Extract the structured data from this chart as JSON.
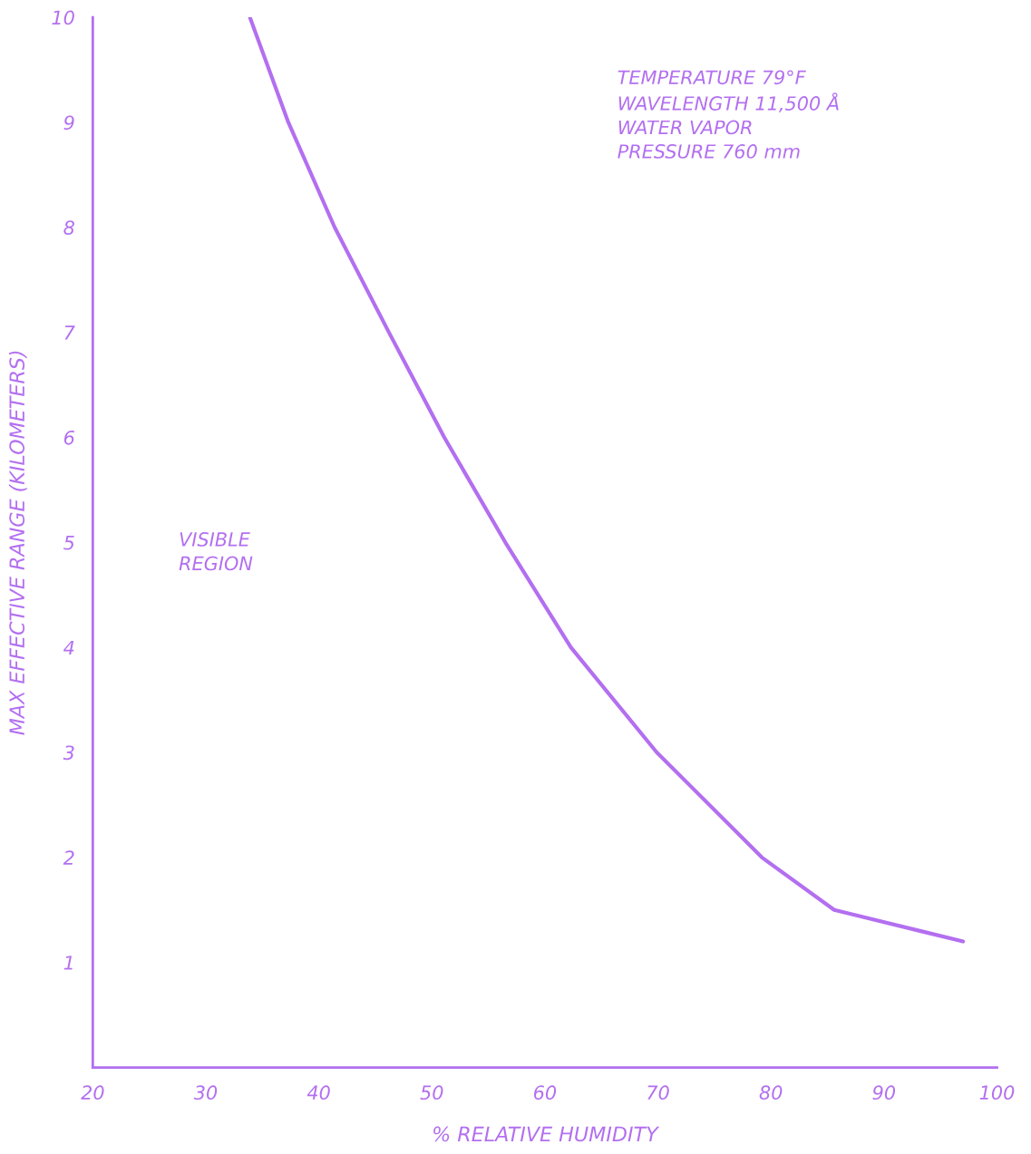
{
  "chart_data": {
    "type": "line",
    "xlabel": "% RELATIVE HUMIDITY",
    "ylabel": "MAX EFFECTIVE RANGE (KILOMETERS)",
    "x": [
      33.9,
      37.3,
      41.4,
      46.2,
      51.1,
      56.5,
      62.3,
      69.9,
      79.2,
      85.6,
      97.0
    ],
    "series": [
      {
        "color": "#b36ff0",
        "values": [
          10,
          9,
          8,
          7,
          6,
          5,
          4,
          3,
          2,
          1.5,
          1.2
        ]
      }
    ],
    "xlim": [
      20,
      100
    ],
    "ylim": [
      0,
      10
    ],
    "xticks": [
      20,
      30,
      40,
      50,
      60,
      70,
      80,
      90,
      100
    ],
    "yticks": [
      1,
      2,
      3,
      4,
      5,
      6,
      7,
      8,
      9,
      10
    ],
    "annotations": [
      "TEMPERATURE 79°F\nWAVELENGTH 11,500 Å\nWATER VAPOR\nPRESSURE 760 mm",
      "VISIBLE\nREGION"
    ],
    "grid": false,
    "legend": false
  }
}
